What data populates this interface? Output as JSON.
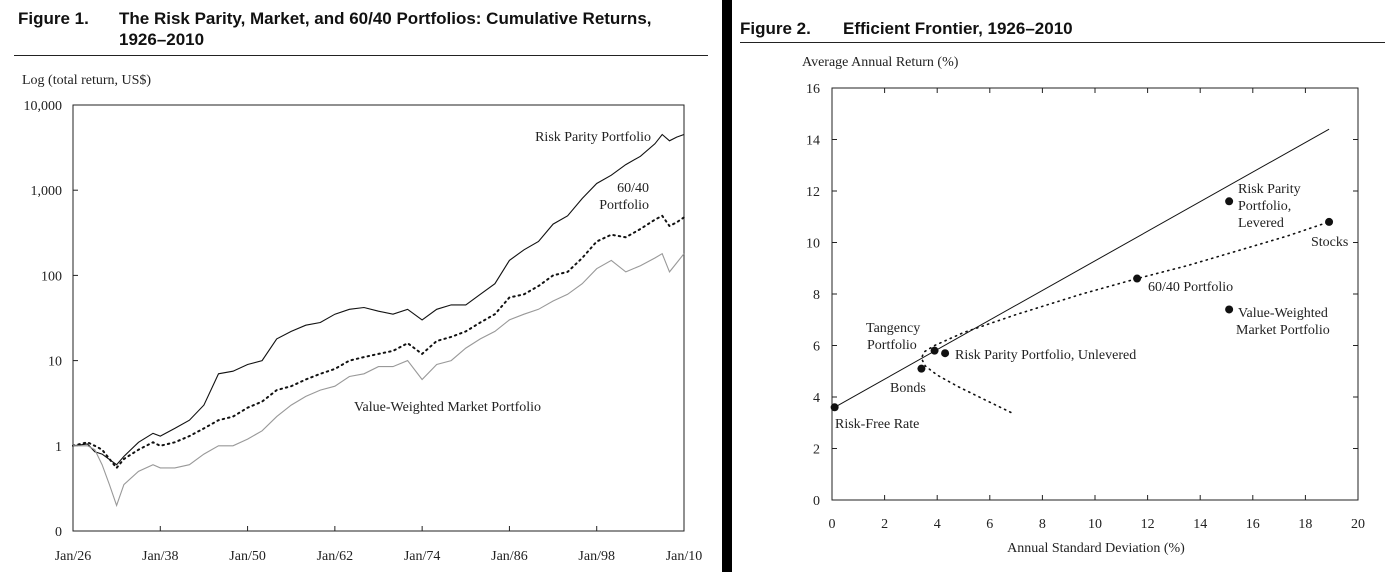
{
  "figure1": {
    "label": "Figure 1.",
    "title_line1": "The Risk Parity, Market, and 60/40 Portfolios: Cumulative Returns,",
    "title_line2": "1926–2010"
  },
  "figure2": {
    "label": "Figure 2.",
    "title": "Efficient Frontier, 1926–2010"
  },
  "chart_data": [
    {
      "type": "line",
      "title": "The Risk Parity, Market, and 60/40 Portfolios: Cumulative Returns, 1926–2010",
      "ylabel": "Log (total return, US$)",
      "xlabel": "",
      "yscale": "log",
      "y_tick_labels": [
        "0",
        "1",
        "10",
        "100",
        "1,000",
        "10,000"
      ],
      "x_tick_labels": [
        "Jan/26",
        "Jan/38",
        "Jan/50",
        "Jan/62",
        "Jan/74",
        "Jan/86",
        "Jan/98",
        "Jan/10"
      ],
      "x_tick_years": [
        1926,
        1938,
        1950,
        1962,
        1974,
        1986,
        1998,
        2010
      ],
      "xlim": [
        1926,
        2010
      ],
      "series": [
        {
          "name": "Risk Parity Portfolio",
          "label": "Risk Parity Portfolio",
          "style": "solid",
          "color": "#111111",
          "x": [
            1926,
            1928,
            1929,
            1930,
            1932,
            1933,
            1935,
            1937,
            1938,
            1940,
            1942,
            1944,
            1946,
            1948,
            1950,
            1952,
            1954,
            1956,
            1958,
            1960,
            1962,
            1964,
            1966,
            1968,
            1970,
            1972,
            1974,
            1976,
            1978,
            1980,
            1982,
            1984,
            1986,
            1988,
            1990,
            1992,
            1994,
            1996,
            1998,
            2000,
            2002,
            2004,
            2006,
            2007,
            2008,
            2009,
            2010
          ],
          "values": [
            1.0,
            1.05,
            0.85,
            0.8,
            0.6,
            0.75,
            1.1,
            1.4,
            1.3,
            1.6,
            2.0,
            3.0,
            7.0,
            7.5,
            9.0,
            10.0,
            18.0,
            22.0,
            26.0,
            28.0,
            35.0,
            40.0,
            42.0,
            38.0,
            35.0,
            40.0,
            30.0,
            40.0,
            45.0,
            45.0,
            60.0,
            80.0,
            150.0,
            200.0,
            250.0,
            400.0,
            500.0,
            800.0,
            1200.0,
            1500.0,
            2000.0,
            2500.0,
            3500.0,
            4500.0,
            3800.0,
            4200.0,
            4500.0
          ]
        },
        {
          "name": "60/40 Portfolio",
          "label_line1": "60/40",
          "label_line2": "Portfolio",
          "style": "dotted",
          "color": "#111111",
          "x": [
            1926,
            1928,
            1929,
            1930,
            1932,
            1933,
            1935,
            1937,
            1938,
            1940,
            1942,
            1944,
            1946,
            1948,
            1950,
            1952,
            1954,
            1956,
            1958,
            1960,
            1962,
            1964,
            1966,
            1968,
            1970,
            1972,
            1974,
            1976,
            1978,
            1980,
            1982,
            1984,
            1986,
            1988,
            1990,
            1992,
            1994,
            1996,
            1998,
            2000,
            2002,
            2004,
            2006,
            2007,
            2008,
            2009,
            2010
          ],
          "values": [
            1.0,
            1.1,
            1.0,
            0.9,
            0.55,
            0.7,
            0.9,
            1.1,
            1.0,
            1.1,
            1.3,
            1.6,
            2.0,
            2.2,
            2.8,
            3.3,
            4.5,
            5.0,
            6.0,
            7.0,
            8.0,
            10.0,
            11.0,
            12.0,
            13.0,
            16.0,
            12.0,
            17.0,
            19.0,
            22.0,
            28.0,
            35.0,
            55.0,
            60.0,
            75.0,
            100.0,
            110.0,
            160.0,
            250.0,
            300.0,
            280.0,
            350.0,
            450.0,
            500.0,
            380.0,
            420.0,
            480.0
          ]
        },
        {
          "name": "Value-Weighted Market Portfolio",
          "label": "Value-Weighted Market Portfolio",
          "style": "solid",
          "color": "#999999",
          "x": [
            1926,
            1928,
            1929,
            1930,
            1931,
            1932,
            1933,
            1935,
            1937,
            1938,
            1940,
            1942,
            1944,
            1946,
            1948,
            1950,
            1952,
            1954,
            1956,
            1958,
            1960,
            1962,
            1964,
            1966,
            1968,
            1970,
            1972,
            1974,
            1976,
            1978,
            1980,
            1982,
            1984,
            1986,
            1988,
            1990,
            1992,
            1994,
            1996,
            1998,
            2000,
            2002,
            2004,
            2006,
            2007,
            2008,
            2009,
            2010
          ],
          "values": [
            1.0,
            1.0,
            0.9,
            0.6,
            0.35,
            0.2,
            0.35,
            0.5,
            0.6,
            0.55,
            0.55,
            0.6,
            0.8,
            1.0,
            1.0,
            1.2,
            1.5,
            2.2,
            3.0,
            3.8,
            4.5,
            5.0,
            6.5,
            7.0,
            8.5,
            8.5,
            10.0,
            6.0,
            9.0,
            10.0,
            14.0,
            18.0,
            22.0,
            30.0,
            35.0,
            40.0,
            50.0,
            60.0,
            80.0,
            120.0,
            150.0,
            110.0,
            130.0,
            160.0,
            180.0,
            110.0,
            140.0,
            180.0
          ]
        }
      ]
    },
    {
      "type": "scatter",
      "title": "Efficient Frontier, 1926–2010",
      "xlabel": "Annual Standard Deviation (%)",
      "ylabel": "Average Annual Return (%)",
      "xlim": [
        0,
        20
      ],
      "ylim": [
        0,
        16
      ],
      "x_ticks": [
        "0",
        "2",
        "4",
        "6",
        "8",
        "10",
        "12",
        "14",
        "16",
        "18",
        "20"
      ],
      "y_ticks": [
        "0",
        "2",
        "4",
        "6",
        "8",
        "10",
        "12",
        "14",
        "16"
      ],
      "points": [
        {
          "name": "Risk-Free Rate",
          "x": 0.1,
          "y": 3.6
        },
        {
          "name": "Bonds",
          "x": 3.4,
          "y": 5.1
        },
        {
          "name": "Tangency Portfolio",
          "label_line1": "Tangency",
          "label_line2": "Portfolio",
          "x": 3.9,
          "y": 5.8
        },
        {
          "name": "Risk Parity Portfolio, Unlevered",
          "x": 4.3,
          "y": 5.7
        },
        {
          "name": "60/40 Portfolio",
          "x": 11.6,
          "y": 8.6
        },
        {
          "name": "Risk Parity Portfolio, Levered",
          "label_line1": "Risk Parity",
          "label_line2": "Portfolio,",
          "label_line3": "Levered",
          "x": 15.1,
          "y": 11.6
        },
        {
          "name": "Stocks",
          "x": 18.9,
          "y": 10.8
        },
        {
          "name": "Value-Weighted Market Portfolio",
          "label_line1": "Value-Weighted",
          "label_line2": "Market Portfolio",
          "x": 15.1,
          "y": 7.4
        }
      ],
      "capital_market_line": {
        "x": [
          0.1,
          18.9
        ],
        "y": [
          3.6,
          14.4
        ]
      },
      "efficient_frontier": {
        "style": "dotted",
        "x": [
          6.8,
          5.8,
          4.8,
          4.0,
          3.55,
          3.4,
          3.5,
          3.9,
          5.0,
          7.0,
          9.5,
          11.6,
          13.5,
          15.5,
          17.3,
          18.9
        ],
        "y": [
          3.4,
          3.9,
          4.4,
          4.85,
          5.2,
          5.5,
          5.75,
          6.0,
          6.5,
          7.2,
          8.0,
          8.6,
          9.1,
          9.7,
          10.25,
          10.8
        ]
      }
    }
  ]
}
